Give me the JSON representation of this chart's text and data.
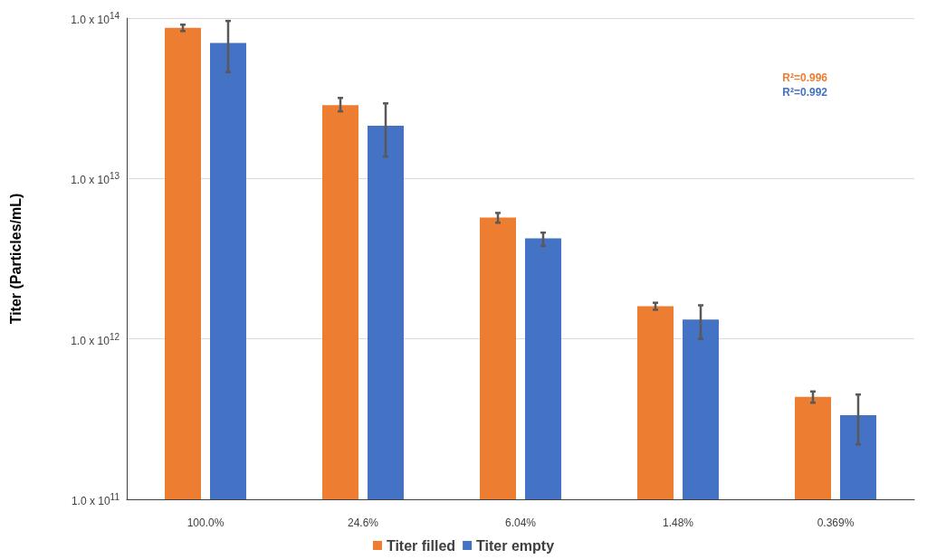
{
  "chart_data": {
    "type": "bar",
    "ylabel": "Titer (Particles/mL)",
    "categories": [
      "100.0%",
      "24.6%",
      "6.04%",
      "1.48%",
      "0.369%"
    ],
    "series": [
      {
        "name": "Titer filled",
        "color": "#ed7d31",
        "values": [
          87000000000000.0,
          28700000000000.0,
          5700000000000.0,
          1600000000000.0,
          435000000000.0
        ],
        "errors": [
          [
            83000000000000.0,
            91000000000000.0
          ],
          [
            26200000000000.0,
            31800000000000.0
          ],
          [
            5300000000000.0,
            6100000000000.0
          ],
          [
            1520000000000.0,
            1680000000000.0
          ],
          [
            400000000000.0,
            470000000000.0
          ]
        ]
      },
      {
        "name": "Titer empty",
        "color": "#4472c4",
        "values": [
          70000000000000.0,
          21300000000000.0,
          4240000000000.0,
          1320000000000.0,
          335000000000.0
        ],
        "errors": [
          [
            46000000000000.0,
            96000000000000.0
          ],
          [
            13700000000000.0,
            29400000000000.0
          ],
          [
            3800000000000.0,
            4600000000000.0
          ],
          [
            1000000000000.0,
            1620000000000.0
          ],
          [
            220000000000.0,
            450000000000.0
          ]
        ]
      }
    ],
    "log": true,
    "ylim": [
      100000000000.0,
      100000000000000.0
    ],
    "yticks": [
      {
        "value": 100000000000.0,
        "label": "1.0 x 10$^{11}$"
      },
      {
        "value": 1000000000000.0,
        "label": "1.0 x 10$^{12}$"
      },
      {
        "value": 10000000000000.0,
        "label": "1.0 x 10$^{13}$"
      },
      {
        "value": 100000000000000.0,
        "label": "1.0 x 10$^{14}$"
      }
    ],
    "grid": "y",
    "legend": "bottom",
    "annotations": [
      "R²=0.996",
      "R²=0.992"
    ]
  }
}
